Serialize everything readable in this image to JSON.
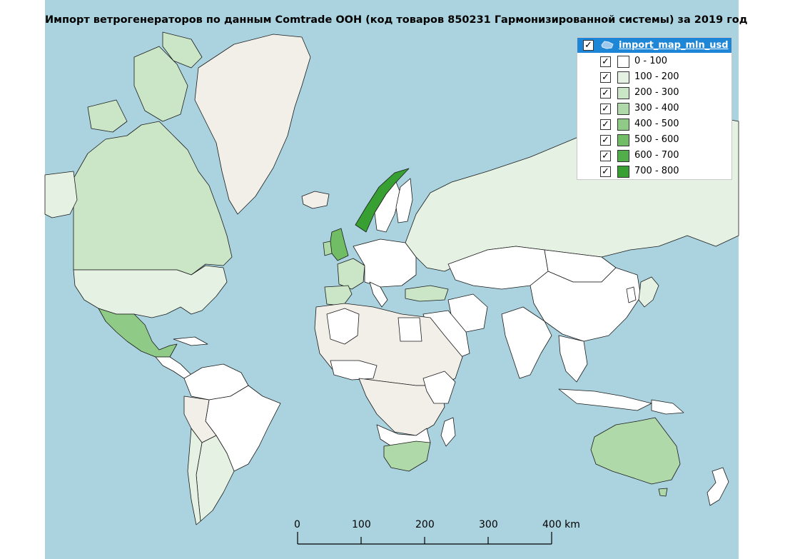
{
  "map": {
    "title": "Импорт ветрогенераторов по данным Comtrade ООН (код товаров 850231 Гармонизированной системы) за 2019 год",
    "colors": {
      "ocean": "#aad3df",
      "no_data": "#f2efe9",
      "border": "#1a1a1a",
      "bin_0": "#ffffff",
      "bin_1": "#e5f2e3",
      "bin_2": "#cbe6c7",
      "bin_3": "#afd9a8",
      "bin_4": "#8fcb86",
      "bin_5": "#70bd66",
      "bin_6": "#52ae4b",
      "bin_7": "#38a033"
    }
  },
  "legend": {
    "layer_name": "import_map_mln_usd",
    "layer_checked": "✓",
    "classes": [
      {
        "label": "0 - 100",
        "color": "#ffffff",
        "checked": "✓"
      },
      {
        "label": "100 - 200",
        "color": "#e5f2e3",
        "checked": "✓"
      },
      {
        "label": "200 - 300",
        "color": "#cbe6c7",
        "checked": "✓"
      },
      {
        "label": "300 - 400",
        "color": "#afd9a8",
        "checked": "✓"
      },
      {
        "label": "400 - 500",
        "color": "#8fcb86",
        "checked": "✓"
      },
      {
        "label": "500 - 600",
        "color": "#70bd66",
        "checked": "✓"
      },
      {
        "label": "600 - 700",
        "color": "#52ae4b",
        "checked": "✓"
      },
      {
        "label": "700 - 800",
        "color": "#38a033",
        "checked": "✓"
      }
    ]
  },
  "scale": {
    "labels": [
      "0",
      "100",
      "200",
      "300",
      "400 km"
    ]
  }
}
